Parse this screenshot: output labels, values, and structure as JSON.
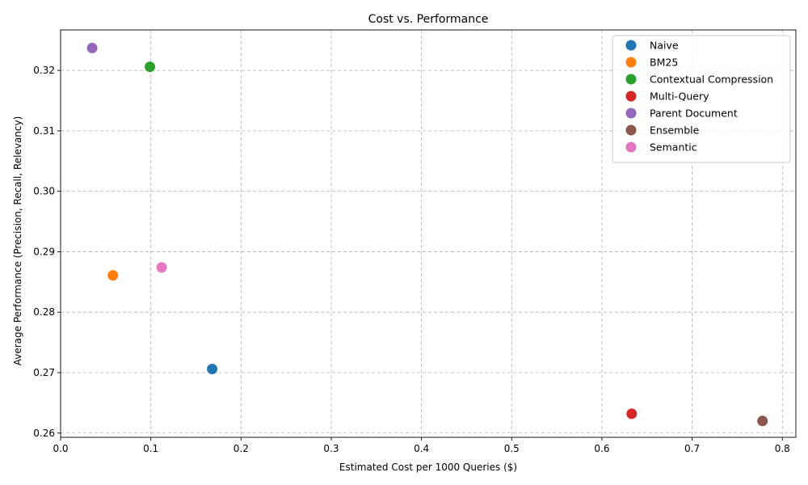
{
  "chart_data": {
    "type": "scatter",
    "title": "Cost vs. Performance",
    "xlabel": "Estimated Cost per 1000 Queries ($)",
    "ylabel": "Average Performance (Precision, Recall, Relevancy)",
    "xlim": [
      0.0,
      0.815
    ],
    "ylim": [
      0.2593,
      0.3267
    ],
    "xticks": [
      0.0,
      0.1,
      0.2,
      0.3,
      0.4,
      0.5,
      0.6,
      0.7,
      0.8
    ],
    "xtick_labels": [
      "0.0",
      "0.1",
      "0.2",
      "0.3",
      "0.4",
      "0.5",
      "0.6",
      "0.7",
      "0.8"
    ],
    "yticks": [
      0.26,
      0.27,
      0.28,
      0.29,
      0.3,
      0.31,
      0.32
    ],
    "ytick_labels": [
      "0.26",
      "0.27",
      "0.28",
      "0.29",
      "0.30",
      "0.31",
      "0.32"
    ],
    "grid": true,
    "legend_position": "top-right",
    "series": [
      {
        "name": "Naive",
        "color": "#1f77b4",
        "x": 0.168,
        "y": 0.2706
      },
      {
        "name": "BM25",
        "color": "#ff7f0e",
        "x": 0.058,
        "y": 0.2861
      },
      {
        "name": "Contextual Compression",
        "color": "#2ca02c",
        "x": 0.099,
        "y": 0.3206
      },
      {
        "name": "Multi-Query",
        "color": "#d62728",
        "x": 0.633,
        "y": 0.2632
      },
      {
        "name": "Parent Document",
        "color": "#9467bd",
        "x": 0.035,
        "y": 0.3237
      },
      {
        "name": "Ensemble",
        "color": "#8c564b",
        "x": 0.778,
        "y": 0.262
      },
      {
        "name": "Semantic",
        "color": "#e377c2",
        "x": 0.112,
        "y": 0.2874
      }
    ]
  }
}
